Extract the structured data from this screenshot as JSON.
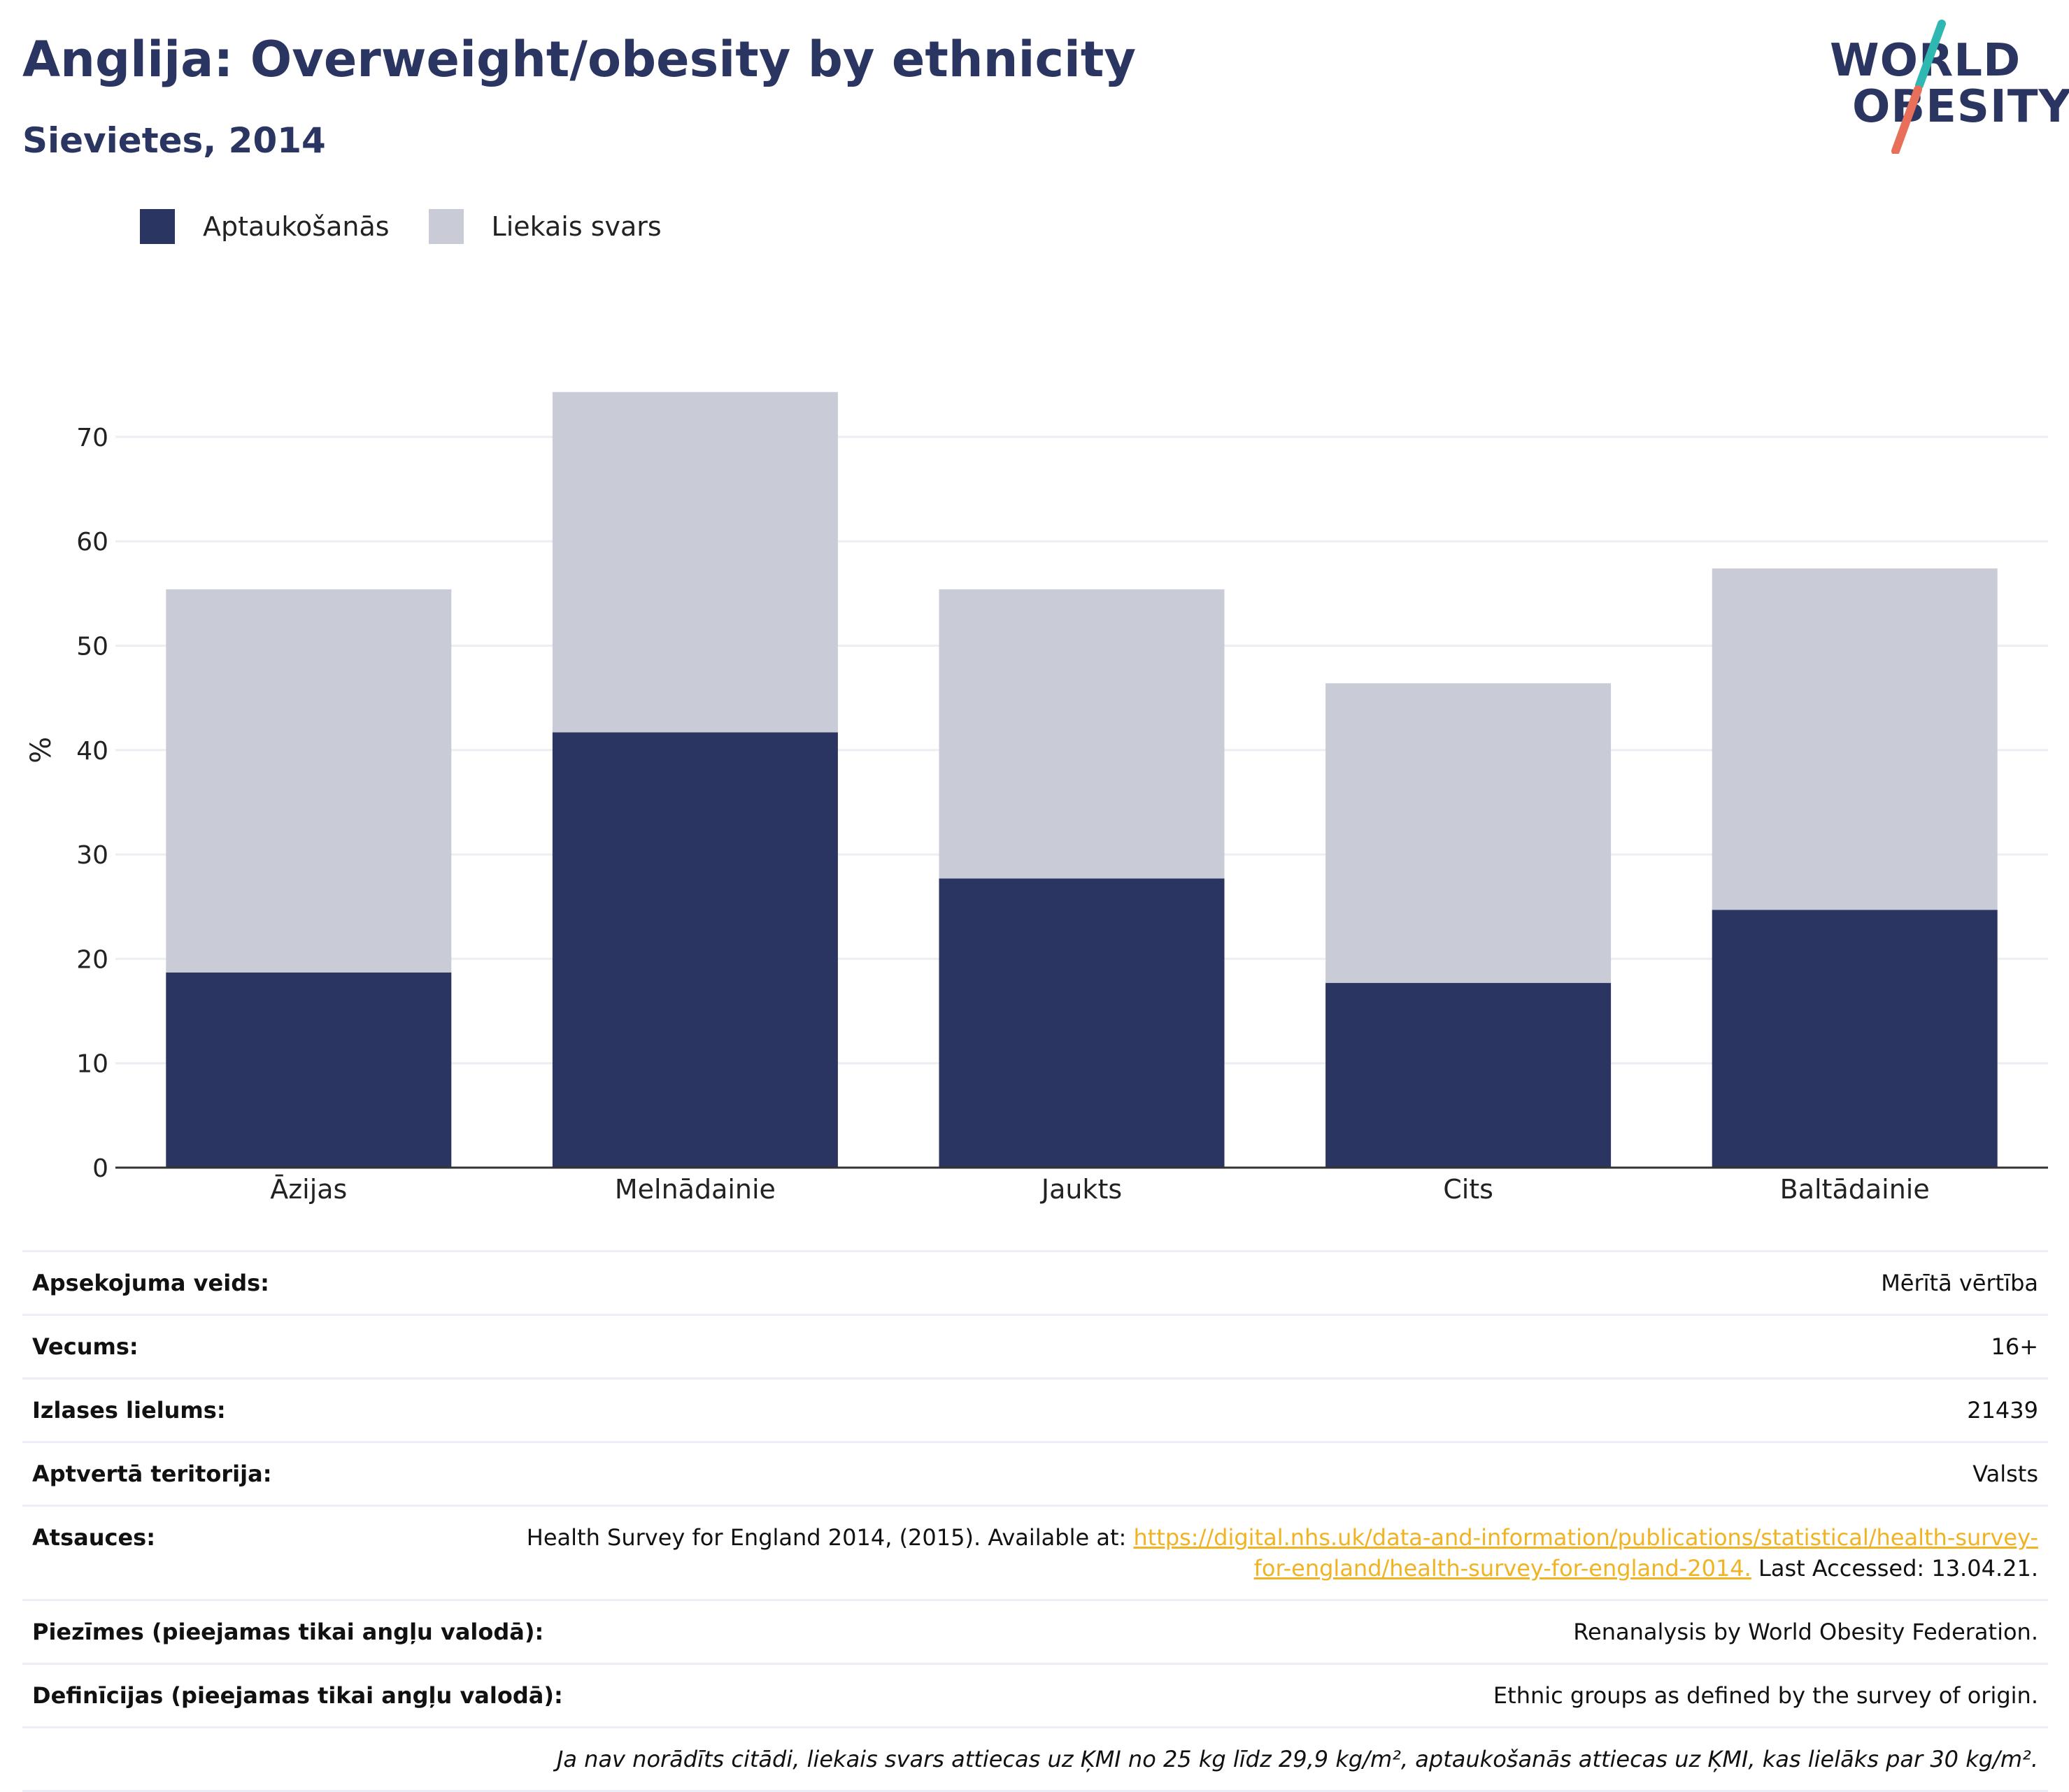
{
  "header": {
    "title": "Anglija: Overweight/obesity by ethnicity",
    "subtitle": "Sievietes, 2014"
  },
  "logo": {
    "line1": "WORLD",
    "line2": "OBESITY",
    "slash_colors": [
      "#2fb7b2",
      "#e8705a"
    ]
  },
  "colors": {
    "obesity": "#2b3561",
    "overweight": "#c9ccd7",
    "axis": "#333333",
    "grid": "#eceef3"
  },
  "chart_data": {
    "type": "bar",
    "stacked": true,
    "categories": [
      "Āzijas",
      "Melnādainie",
      "Jaukts",
      "Cits",
      "Baltādainie"
    ],
    "series": [
      {
        "name": "Aptaukošanās",
        "values": [
          18.7,
          41.7,
          27.7,
          17.7,
          24.7
        ],
        "color": "#2b3561"
      },
      {
        "name": "Liekais svars",
        "values": [
          36.7,
          32.6,
          27.7,
          28.7,
          32.7
        ],
        "color": "#c9ccd7"
      }
    ],
    "ylabel": "%",
    "ylim": [
      0,
      80
    ],
    "yticks": [
      0,
      10,
      20,
      30,
      40,
      50,
      60,
      70
    ],
    "grid": true,
    "legend": "top-left"
  },
  "meta": {
    "survey_type_label": "Apsekojuma veids:",
    "survey_type_value": "Mērītā vērtība",
    "age_label": "Vecums:",
    "age_value": "16+",
    "sample_label": "Izlases lielums:",
    "sample_value": "21439",
    "coverage_label": "Aptvertā teritorija:",
    "coverage_value": "Valsts",
    "refs_label": "Atsauces:",
    "refs_prefix": "Health Survey for England 2014, (2015). Available at: ",
    "refs_link": "https://digital.nhs.uk/data-and-information/publications/statistical/health-survey-for-england/health-survey-for-england-2014.",
    "refs_suffix": " Last Accessed: 13.04.21.",
    "notes_label": "Piezīmes (pieejamas tikai angļu valodā):",
    "notes_value": "Renanalysis by World Obesity Federation.",
    "defs_label": "Definīcijas (pieejamas tikai angļu valodā):",
    "defs_value": "Ethnic groups as defined by the survey of origin.",
    "footnote": "Ja nav norādīts citādi, liekais svars attiecas uz ĶMI no 25 kg līdz 29,9 kg/m², aptaukošanās attiecas uz ĶMI, kas lielāks par 30 kg/m²."
  }
}
